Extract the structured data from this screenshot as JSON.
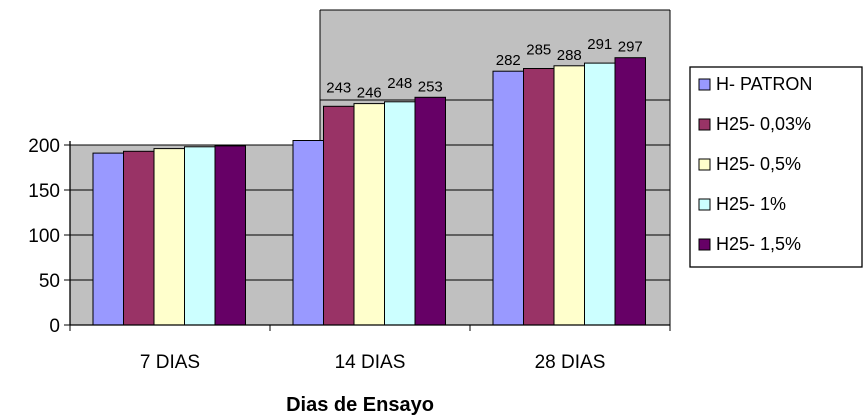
{
  "chart_data": {
    "type": "bar",
    "title": "",
    "xlabel": "Dias de Ensayo",
    "ylabel": "",
    "categories": [
      "7 DIAS",
      "14 DIAS",
      "28 DIAS"
    ],
    "yticks": [
      0,
      50,
      100,
      150,
      200
    ],
    "ylim": [
      0,
      300
    ],
    "grid": true,
    "legend_position": "right",
    "series": [
      {
        "name": "H- PATRON",
        "color": "#9999ff",
        "values": [
          191,
          205,
          282
        ]
      },
      {
        "name": "H25- 0,03%",
        "color": "#993366",
        "values": [
          193,
          243,
          285
        ]
      },
      {
        "name": "H25- 0,5%",
        "color": "#ffffcc",
        "values": [
          196,
          246,
          288
        ]
      },
      {
        "name": "H25- 1%",
        "color": "#ccffff",
        "values": [
          198,
          248,
          291
        ]
      },
      {
        "name": "H25- 1,5%",
        "color": "#660066",
        "values": [
          199,
          253,
          297
        ]
      }
    ],
    "data_labels": [
      [
        null,
        null,
        null,
        null,
        null
      ],
      [
        "",
        "243",
        "246",
        "248",
        "253"
      ],
      [
        "282",
        "285",
        "288",
        "291",
        "297"
      ]
    ]
  }
}
